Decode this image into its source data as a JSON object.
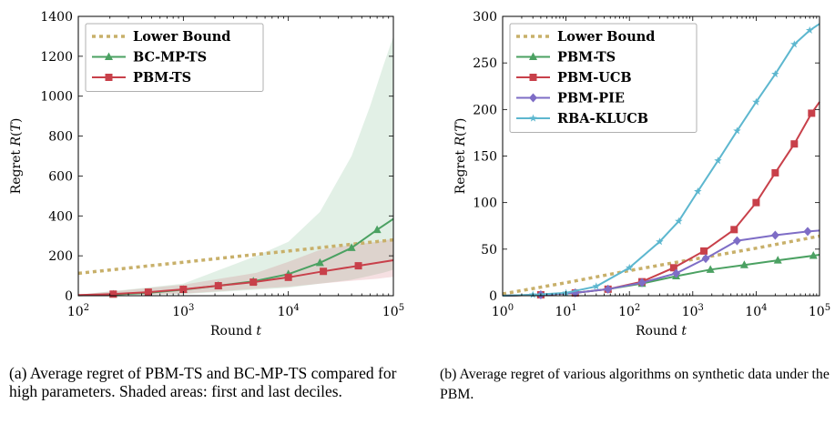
{
  "chart_data": [
    {
      "type": "line",
      "title": "",
      "xlabel": "Round t",
      "ylabel": "Regret R(T)",
      "xscale": "log",
      "xlim": [
        100,
        100000
      ],
      "ylim": [
        0,
        1400
      ],
      "xticks": [
        100,
        1000,
        10000,
        100000
      ],
      "xtick_labels": [
        "10^2",
        "10^3",
        "10^4",
        "10^5"
      ],
      "yticks": [
        0,
        200,
        400,
        600,
        800,
        1000,
        1200,
        1400
      ],
      "ytick_labels": [
        "0",
        "200",
        "400",
        "600",
        "800",
        "1000",
        "1200",
        "1400"
      ],
      "grid": false,
      "legend_position": "top-left",
      "series": [
        {
          "name": "Lower Bound",
          "style": "dotted",
          "marker": "none",
          "color": "#C8B06A",
          "x": [
            100,
            316,
            1000,
            3162,
            10000,
            31623,
            100000
          ],
          "y": [
            112,
            140,
            168,
            196,
            224,
            252,
            280
          ]
        },
        {
          "name": "BC-MP-TS",
          "style": "solid",
          "marker": "triangle",
          "color": "#4BA162",
          "x": [
            100,
            215,
            464,
            1000,
            2154,
            4642,
            10000,
            20000,
            40000,
            70000,
            100000
          ],
          "y": [
            2,
            6,
            14,
            30,
            50,
            72,
            108,
            165,
            240,
            330,
            385
          ],
          "band": {
            "label": "first and last deciles",
            "x": [
              100,
              1000,
              5000,
              10000,
              20000,
              40000,
              60000,
              80000,
              100000
            ],
            "low": [
              0,
              8,
              30,
              40,
              60,
              80,
              100,
              115,
              130
            ],
            "high": [
              5,
              60,
              200,
              270,
              420,
              700,
              950,
              1150,
              1300
            ]
          }
        },
        {
          "name": "PBM-TS",
          "style": "solid",
          "marker": "square",
          "color": "#C8404A",
          "x": [
            100,
            215,
            464,
            1000,
            2154,
            4642,
            10000,
            21544,
            46416,
            100000
          ],
          "y": [
            3,
            8,
            18,
            32,
            50,
            68,
            92,
            122,
            150,
            178
          ],
          "band": {
            "label": "first and last deciles",
            "x": [
              100,
              1000,
              5000,
              10000,
              20000,
              40000,
              70000,
              100000
            ],
            "low": [
              0,
              10,
              35,
              45,
              60,
              75,
              85,
              95
            ],
            "high": [
              5,
              55,
              115,
              170,
              230,
              255,
              270,
              285
            ]
          }
        }
      ]
    },
    {
      "type": "line",
      "title": "",
      "xlabel": "Round t",
      "ylabel": "Regret R(T)",
      "xscale": "log",
      "xlim": [
        1,
        100000
      ],
      "ylim": [
        0,
        300
      ],
      "xticks": [
        1,
        10,
        100,
        1000,
        10000,
        100000
      ],
      "xtick_labels": [
        "10^0",
        "10^1",
        "10^2",
        "10^3",
        "10^4",
        "10^5"
      ],
      "yticks": [
        0,
        50,
        100,
        150,
        200,
        250,
        300
      ],
      "ytick_labels": [
        "0",
        "50",
        "100",
        "150",
        "200",
        "250",
        "300"
      ],
      "grid": false,
      "legend_position": "top-left",
      "series": [
        {
          "name": "Lower Bound",
          "style": "dotted",
          "marker": "none",
          "color": "#C8B06A",
          "x": [
            1,
            10,
            100,
            1000,
            10000,
            100000
          ],
          "y": [
            2,
            14,
            27,
            39,
            51,
            64
          ]
        },
        {
          "name": "PBM-TS",
          "style": "solid",
          "marker": "triangle",
          "color": "#4BA162",
          "x": [
            1,
            4,
            14,
            46,
            158,
            547,
            1900,
            6500,
            22000,
            80000,
            100000
          ],
          "y": [
            0,
            1,
            3,
            7,
            13,
            21,
            28,
            33,
            38,
            43,
            44
          ]
        },
        {
          "name": "PBM-UCB",
          "style": "solid",
          "marker": "square",
          "color": "#C8404A",
          "x": [
            1,
            4,
            14,
            46,
            158,
            500,
            1500,
            4500,
            10000,
            20000,
            40000,
            75000,
            100000
          ],
          "y": [
            0,
            1,
            3,
            7,
            15,
            30,
            48,
            71,
            100,
            132,
            163,
            196,
            208
          ]
        },
        {
          "name": "PBM-PIE",
          "style": "solid",
          "marker": "diamond",
          "color": "#7E6DC6",
          "x": [
            1,
            4,
            14,
            46,
            158,
            547,
            1600,
            5000,
            20000,
            65000,
            100000
          ],
          "y": [
            0,
            1,
            3,
            7,
            14,
            24,
            40,
            59,
            65,
            69,
            70
          ]
        },
        {
          "name": "RBA-KLUCB",
          "style": "solid",
          "marker": "star",
          "color": "#5DB7CF",
          "x": [
            1,
            3,
            10,
            30,
            100,
            300,
            600,
            1200,
            2500,
            5000,
            10000,
            20000,
            40000,
            70000,
            100000
          ],
          "y": [
            0,
            1,
            3,
            10,
            30,
            58,
            80,
            112,
            145,
            177,
            208,
            238,
            270,
            285,
            292
          ]
        }
      ]
    }
  ],
  "captions": {
    "a": "(a) Average regret of PBM-TS and BC-MP-TS compared for high parameters. Shaded areas: first and last deciles.",
    "b": "(b) Average regret of various algorithms on synthetic data under the PBM."
  }
}
